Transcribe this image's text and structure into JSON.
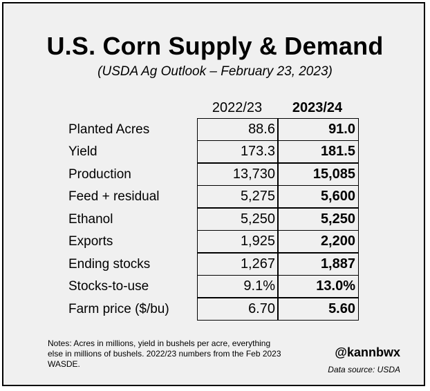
{
  "title": "U.S. Corn Supply & Demand",
  "subtitle": "(USDA Ag Outlook – February 23, 2023)",
  "columns": [
    "2022/23",
    "2023/24"
  ],
  "rows": [
    {
      "label": "Planted Acres",
      "v2022": "88.6",
      "v2023": "91.0"
    },
    {
      "label": "Yield",
      "v2022": "173.3",
      "v2023": "181.5"
    },
    {
      "label": "Production",
      "v2022": "13,730",
      "v2023": "15,085"
    },
    {
      "label": "Feed + residual",
      "v2022": "5,275",
      "v2023": "5,600"
    },
    {
      "label": "Ethanol",
      "v2022": "5,250",
      "v2023": "5,250"
    },
    {
      "label": "Exports",
      "v2022": "1,925",
      "v2023": "2,200"
    },
    {
      "label": "Ending stocks",
      "v2022": "1,267",
      "v2023": "1,887"
    },
    {
      "label": "Stocks-to-use",
      "v2022": "9.1%",
      "v2023": "13.0%"
    },
    {
      "label": "Farm price ($/bu)",
      "v2022": "6.70",
      "v2023": "5.60"
    }
  ],
  "notes": "Notes: Acres in millions, yield in bushels per acre, everything else in millions of bushels. 2022/23 numbers from the Feb 2023 WASDE.",
  "handle": "@kannbwx",
  "source": "Data source: USDA"
}
